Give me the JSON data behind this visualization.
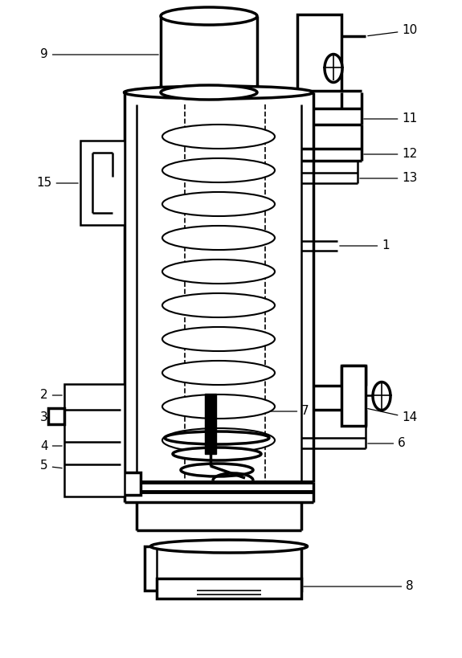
{
  "bg_color": "#ffffff",
  "line_color": "#000000",
  "figsize": [
    5.75,
    8.19
  ],
  "dpi": 100
}
